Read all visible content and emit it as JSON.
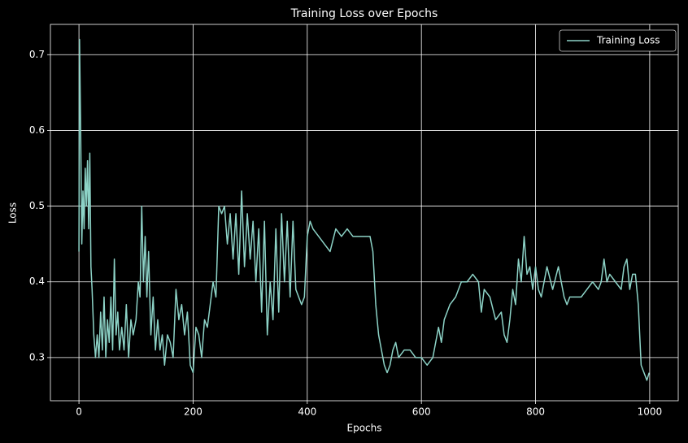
{
  "chart_data": {
    "type": "line",
    "title": "Training Loss over Epochs",
    "xlabel": "Epochs",
    "ylabel": "Loss",
    "x": [
      0,
      1,
      3,
      5,
      7,
      9,
      11,
      13,
      15,
      17,
      19,
      21,
      23,
      26,
      29,
      32,
      35,
      38,
      41,
      44,
      47,
      50,
      53,
      56,
      59,
      62,
      65,
      68,
      71,
      75,
      79,
      83,
      87,
      91,
      95,
      100,
      104,
      107,
      110,
      113,
      116,
      119,
      122,
      126,
      130,
      134,
      138,
      142,
      146,
      150,
      155,
      160,
      165,
      170,
      175,
      180,
      185,
      190,
      195,
      200,
      205,
      210,
      215,
      220,
      225,
      230,
      235,
      240,
      245,
      250,
      255,
      260,
      265,
      270,
      275,
      280,
      285,
      290,
      295,
      300,
      305,
      310,
      315,
      320,
      325,
      330,
      335,
      340,
      345,
      350,
      355,
      360,
      365,
      370,
      375,
      380,
      385,
      390,
      395,
      400,
      405,
      410,
      420,
      430,
      440,
      450,
      460,
      470,
      480,
      490,
      500,
      510,
      515,
      520,
      525,
      530,
      535,
      540,
      545,
      550,
      555,
      560,
      570,
      580,
      590,
      600,
      610,
      620,
      625,
      630,
      635,
      640,
      650,
      660,
      670,
      680,
      690,
      700,
      705,
      710,
      720,
      730,
      740,
      745,
      750,
      755,
      760,
      765,
      770,
      775,
      780,
      785,
      790,
      795,
      800,
      805,
      810,
      820,
      830,
      840,
      850,
      855,
      860,
      870,
      880,
      890,
      900,
      910,
      915,
      920,
      925,
      930,
      940,
      950,
      955,
      960,
      965,
      970,
      975,
      980,
      985,
      990,
      995,
      999
    ],
    "series": [
      {
        "name": "Training Loss",
        "color": "#8dd3c7",
        "values": [
          0.44,
          0.72,
          0.6,
          0.45,
          0.52,
          0.47,
          0.55,
          0.5,
          0.56,
          0.47,
          0.57,
          0.42,
          0.39,
          0.33,
          0.3,
          0.33,
          0.3,
          0.36,
          0.31,
          0.38,
          0.3,
          0.35,
          0.32,
          0.38,
          0.31,
          0.43,
          0.33,
          0.36,
          0.31,
          0.34,
          0.31,
          0.37,
          0.3,
          0.35,
          0.33,
          0.35,
          0.4,
          0.38,
          0.5,
          0.4,
          0.46,
          0.38,
          0.44,
          0.33,
          0.38,
          0.31,
          0.35,
          0.31,
          0.33,
          0.29,
          0.33,
          0.32,
          0.3,
          0.39,
          0.35,
          0.37,
          0.33,
          0.36,
          0.29,
          0.28,
          0.34,
          0.33,
          0.3,
          0.35,
          0.34,
          0.37,
          0.4,
          0.38,
          0.5,
          0.49,
          0.5,
          0.45,
          0.49,
          0.43,
          0.49,
          0.41,
          0.52,
          0.42,
          0.49,
          0.43,
          0.48,
          0.4,
          0.47,
          0.36,
          0.48,
          0.33,
          0.4,
          0.35,
          0.47,
          0.36,
          0.49,
          0.4,
          0.48,
          0.38,
          0.48,
          0.39,
          0.38,
          0.37,
          0.38,
          0.46,
          0.48,
          0.47,
          0.46,
          0.45,
          0.44,
          0.47,
          0.46,
          0.47,
          0.46,
          0.46,
          0.46,
          0.46,
          0.44,
          0.37,
          0.33,
          0.31,
          0.29,
          0.28,
          0.29,
          0.31,
          0.32,
          0.3,
          0.31,
          0.31,
          0.3,
          0.3,
          0.29,
          0.3,
          0.32,
          0.34,
          0.32,
          0.35,
          0.37,
          0.38,
          0.4,
          0.4,
          0.41,
          0.4,
          0.36,
          0.39,
          0.38,
          0.35,
          0.36,
          0.33,
          0.32,
          0.35,
          0.39,
          0.37,
          0.43,
          0.4,
          0.46,
          0.41,
          0.42,
          0.39,
          0.42,
          0.39,
          0.38,
          0.42,
          0.39,
          0.42,
          0.38,
          0.37,
          0.38,
          0.38,
          0.38,
          0.39,
          0.4,
          0.39,
          0.4,
          0.43,
          0.4,
          0.41,
          0.4,
          0.39,
          0.42,
          0.43,
          0.39,
          0.41,
          0.41,
          0.37,
          0.29,
          0.28,
          0.27,
          0.28
        ]
      }
    ],
    "xlim": [
      -50,
      1050
    ],
    "ylim": [
      0.243,
      0.74
    ],
    "xticks": [
      0,
      200,
      400,
      600,
      800,
      1000
    ],
    "yticks": [
      0.3,
      0.4,
      0.5,
      0.6,
      0.7
    ],
    "grid": true,
    "legend": "upper right"
  }
}
